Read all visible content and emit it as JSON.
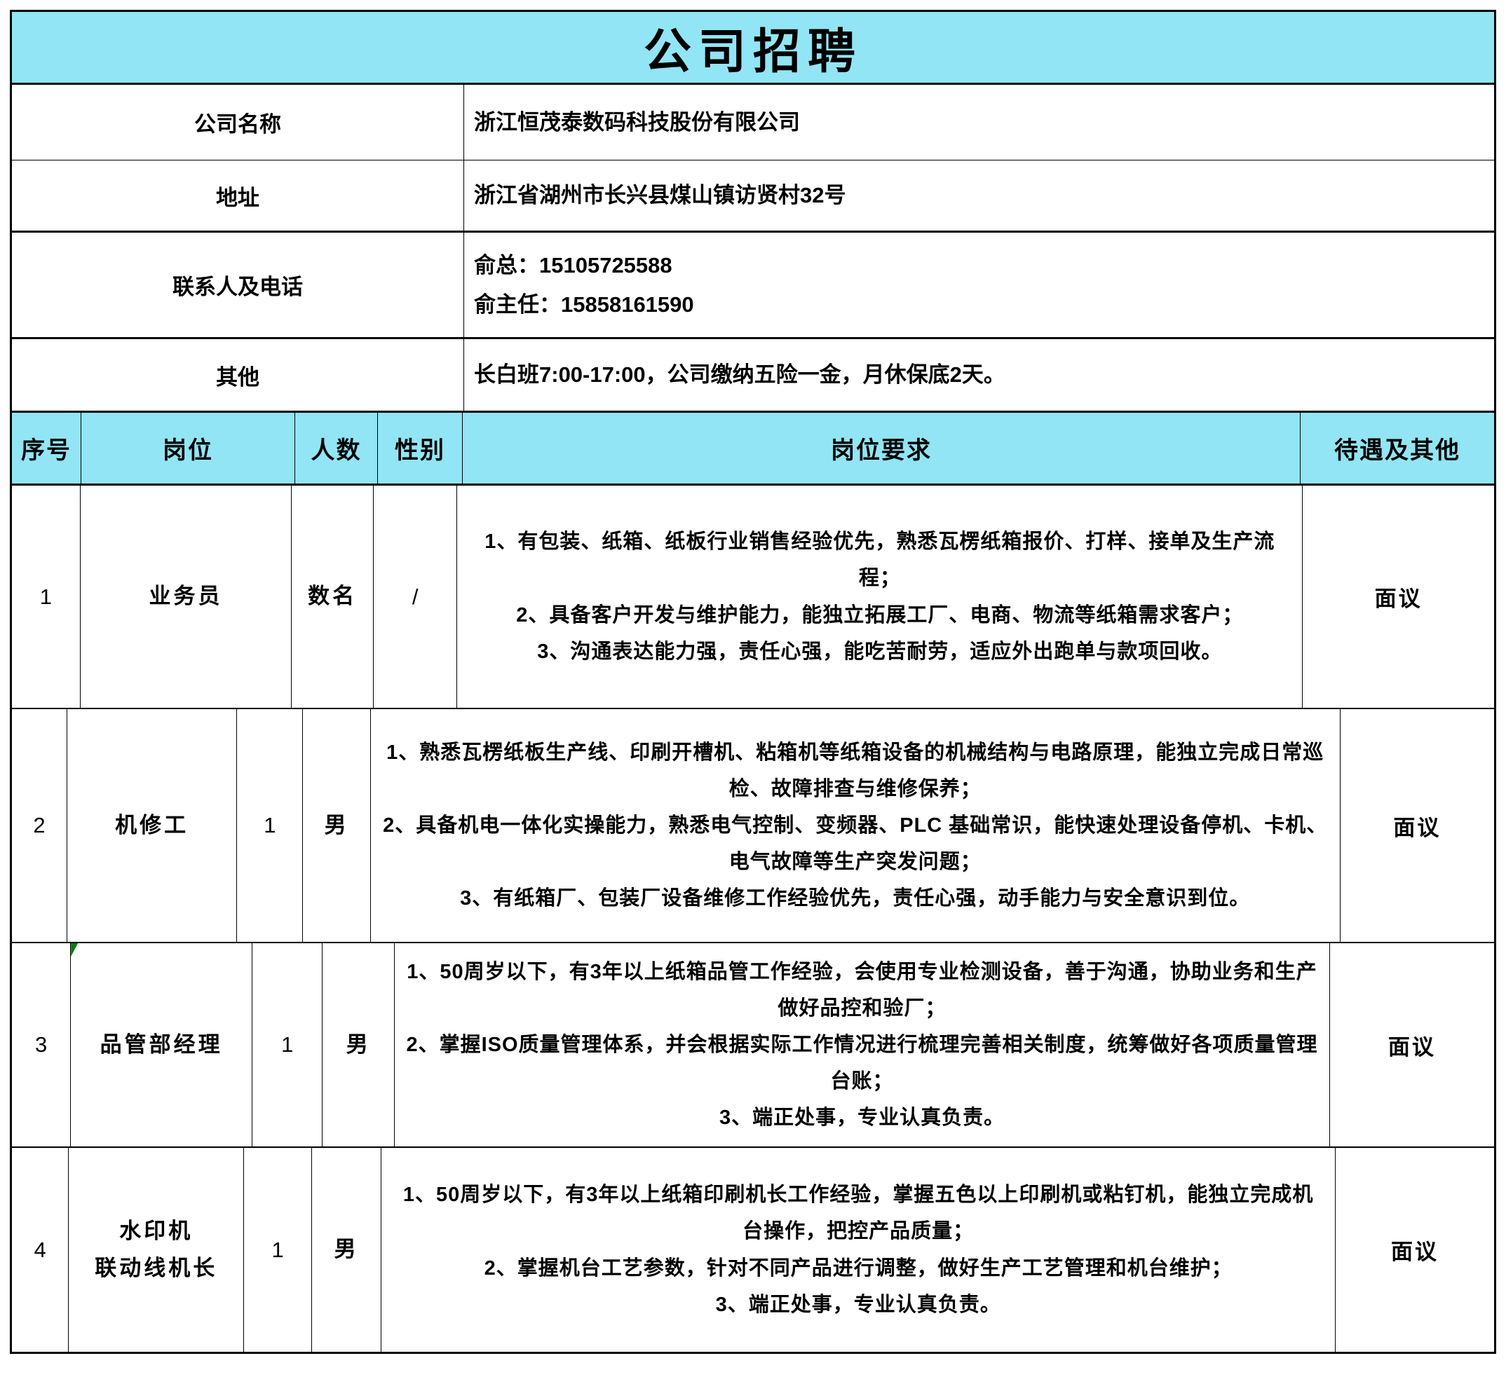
{
  "title": "公司招聘",
  "colors": {
    "header_fill": "#92e5f4",
    "comment_marker": "#0a7f0a",
    "border": "#000000",
    "text": "#000000",
    "background": "#ffffff"
  },
  "info_rows": [
    {
      "label": "公司名称",
      "value": "浙江恒茂泰数码科技股份有限公司"
    },
    {
      "label": "地址",
      "value": "浙江省湖州市长兴县煤山镇访贤村32号"
    },
    {
      "label": "联系人及电话",
      "value": "俞总：15105725588\n俞主任：15858161590"
    },
    {
      "label": "其他",
      "value": "长白班7:00-17:00，公司缴纳五险一金，月休保底2天。"
    }
  ],
  "columns": {
    "index": "序号",
    "position": "岗位",
    "headcount": "人数",
    "gender": "性别",
    "requirements": "岗位要求",
    "salary": "待遇及其他"
  },
  "jobs": [
    {
      "index": "1",
      "position": "业务员",
      "headcount": "数名",
      "gender": "/",
      "requirements": "1、有包装、纸箱、纸板行业销售经验优先，熟悉瓦楞纸箱报价、打样、接单及生产流程；\n2、具备客户开发与维护能力，能独立拓展工厂、电商、物流等纸箱需求客户；\n3、沟通表达能力强，责任心强，能吃苦耐劳，适应外出跑单与款项回收。",
      "salary": "面议"
    },
    {
      "index": "2",
      "position": "机修工",
      "headcount": "1",
      "gender": "男",
      "requirements": "1、熟悉瓦楞纸板生产线、印刷开槽机、粘箱机等纸箱设备的机械结构与电路原理，能独立完成日常巡检、故障排查与维修保养；\n2、具备机电一体化实操能力，熟悉电气控制、变频器、PLC 基础常识，能快速处理设备停机、卡机、电气故障等生产突发问题；\n3、有纸箱厂、包装厂设备维修工作经验优先，责任心强，动手能力与安全意识到位。",
      "salary": "面议"
    },
    {
      "index": "3",
      "position": "品管部经理",
      "headcount": "1",
      "gender": "男",
      "requirements": "1、50周岁以下，有3年以上纸箱品管工作经验，会使用专业检测设备，善于沟通，协助业务和生产做好品控和验厂；\n2、掌握ISO质量管理体系，并会根据实际工作情况进行梳理完善相关制度，统筹做好各项质量管理台账；\n3、端正处事，专业认真负责。",
      "salary": "面议"
    },
    {
      "index": "4",
      "position": "水印机\n联动线机长",
      "headcount": "1",
      "gender": "男",
      "requirements": "1、50周岁以下，有3年以上纸箱印刷机长工作经验，掌握五色以上印刷机或粘钉机，能独立完成机台操作，把控产品质量；\n2、掌握机台工艺参数，针对不同产品进行调整，做好生产工艺管理和机台维护；\n3、端正处事，专业认真负责。",
      "salary": "面议"
    }
  ]
}
